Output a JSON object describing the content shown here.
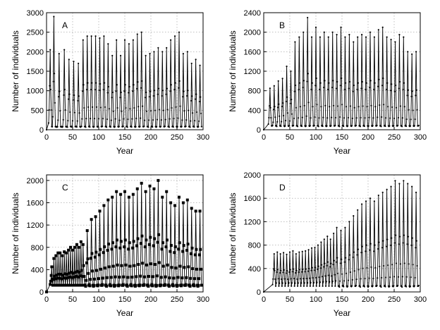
{
  "chart_data": [
    {
      "type": "line",
      "panel_label": "A",
      "title": "",
      "xlabel": "Year",
      "ylabel": "Number of individuals",
      "xlim": [
        0,
        300
      ],
      "ylim": [
        0,
        3000
      ],
      "xticks": [
        0,
        50,
        100,
        150,
        200,
        250,
        300
      ],
      "yticks": [
        0,
        500,
        1000,
        1500,
        2000,
        2500,
        3000
      ],
      "grid": true,
      "marker": "small-dot",
      "start": [
        0,
        0
      ],
      "peak_years": [
        7,
        14,
        24,
        34,
        43,
        52,
        61,
        70,
        78,
        86,
        94,
        102,
        110,
        118,
        126,
        134,
        142,
        150,
        158,
        166,
        174,
        182,
        190,
        198,
        206,
        214,
        222,
        230,
        238,
        246,
        254,
        262,
        270,
        278,
        286,
        294
      ],
      "peak_values": [
        2050,
        2900,
        1950,
        2050,
        1800,
        1750,
        1700,
        2300,
        2400,
        2400,
        2400,
        2350,
        2400,
        2200,
        1900,
        2300,
        1900,
        2300,
        2200,
        2300,
        2450,
        2500,
        1900,
        1950,
        2000,
        2100,
        2000,
        2100,
        2300,
        2400,
        2500,
        1950,
        2000,
        1700,
        1800,
        1650
      ],
      "trough_value": 80
    },
    {
      "type": "line",
      "panel_label": "B",
      "title": "",
      "xlabel": "Year",
      "ylabel": "Number of individuals",
      "xlim": [
        0,
        300
      ],
      "ylim": [
        0,
        2400
      ],
      "xticks": [
        0,
        50,
        100,
        150,
        200,
        250,
        300
      ],
      "yticks": [
        0,
        400,
        800,
        1200,
        1600,
        2000,
        2400
      ],
      "grid": true,
      "marker": "small-dot",
      "start": [
        0,
        0
      ],
      "peak_years": [
        12,
        20,
        28,
        36,
        44,
        52,
        60,
        68,
        76,
        84,
        92,
        100,
        108,
        116,
        124,
        132,
        140,
        148,
        156,
        164,
        172,
        180,
        188,
        196,
        204,
        212,
        220,
        228,
        236,
        244,
        252,
        260,
        268,
        276,
        284,
        292
      ],
      "peak_values": [
        850,
        900,
        1000,
        1050,
        1300,
        1200,
        1800,
        1900,
        2000,
        2300,
        1900,
        2100,
        1900,
        2000,
        1900,
        2000,
        1950,
        2100,
        1900,
        1950,
        1800,
        1900,
        1950,
        1900,
        2000,
        1900,
        2050,
        2100,
        1900,
        1850,
        1800,
        1950,
        1900,
        1600,
        1550,
        1600
      ],
      "trough_value": 80
    },
    {
      "type": "line",
      "panel_label": "C",
      "title": "",
      "xlabel": "Year",
      "ylabel": "Number of individuals",
      "xlim": [
        0,
        300
      ],
      "ylim": [
        0,
        2100
      ],
      "xticks": [
        0,
        50,
        100,
        150,
        200,
        250,
        300
      ],
      "yticks": [
        0,
        400,
        800,
        1200,
        1600,
        2000
      ],
      "grid": true,
      "marker": "square",
      "start": [
        0,
        0
      ],
      "peak_years": [
        10,
        14,
        18,
        22,
        26,
        30,
        34,
        38,
        42,
        46,
        50,
        54,
        58,
        62,
        66,
        70,
        78,
        86,
        94,
        102,
        110,
        118,
        126,
        134,
        142,
        150,
        158,
        166,
        174,
        182,
        190,
        198,
        206,
        214,
        222,
        230,
        238,
        246,
        254,
        262,
        270,
        278,
        286,
        294
      ],
      "peak_values": [
        450,
        600,
        650,
        700,
        700,
        650,
        720,
        700,
        750,
        800,
        750,
        800,
        850,
        800,
        900,
        850,
        1100,
        1300,
        1350,
        1450,
        1550,
        1650,
        1700,
        1800,
        1750,
        1800,
        1700,
        1750,
        1850,
        1950,
        1800,
        1900,
        1850,
        2000,
        1700,
        1800,
        1600,
        1550,
        1700,
        1600,
        1650,
        1500,
        1450,
        1450
      ],
      "trough_value": 120
    },
    {
      "type": "line",
      "panel_label": "D",
      "title": "",
      "xlabel": "Year",
      "ylabel": "Number of individuals",
      "xlim": [
        0,
        300
      ],
      "ylim": [
        0,
        2000
      ],
      "xticks": [
        0,
        50,
        100,
        150,
        200,
        250,
        300
      ],
      "yticks": [
        0,
        400,
        800,
        1200,
        1600,
        2000
      ],
      "grid": true,
      "marker": "small-dot",
      "start": [
        0,
        0
      ],
      "peak_years": [
        20,
        26,
        32,
        38,
        44,
        50,
        56,
        62,
        68,
        74,
        80,
        86,
        92,
        98,
        104,
        110,
        116,
        122,
        128,
        134,
        140,
        148,
        156,
        164,
        172,
        180,
        188,
        196,
        204,
        212,
        220,
        228,
        236,
        244,
        252,
        260,
        268,
        276,
        284,
        292
      ],
      "peak_values": [
        650,
        680,
        650,
        670,
        640,
        680,
        700,
        650,
        680,
        690,
        700,
        720,
        750,
        760,
        800,
        850,
        900,
        950,
        900,
        1000,
        1100,
        1050,
        1100,
        1200,
        1300,
        1400,
        1500,
        1550,
        1600,
        1550,
        1650,
        1700,
        1750,
        1800,
        1900,
        1850,
        1900,
        1850,
        1800,
        1700
      ],
      "trough_value": 100
    }
  ]
}
